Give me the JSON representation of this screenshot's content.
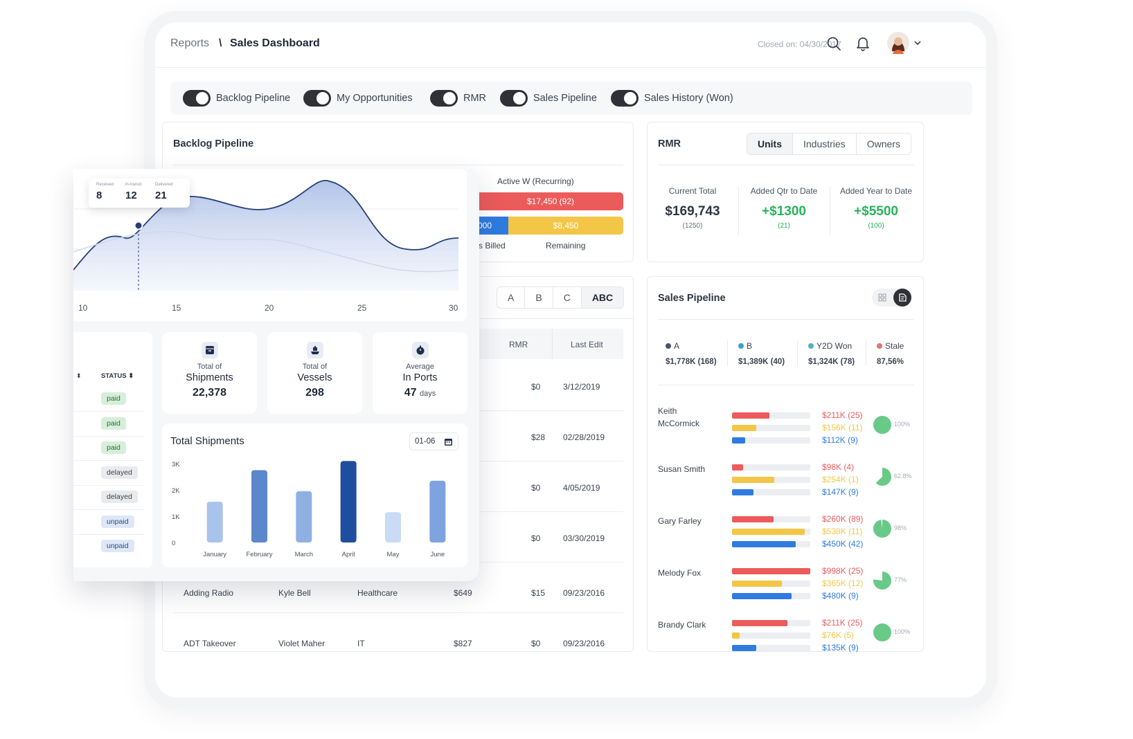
{
  "header": {
    "crumb_root": "Reports",
    "crumb_sep": "\\",
    "crumb_current": "Sales Dashboard",
    "closed_on": "Closed on: 04/30/2017"
  },
  "toggles": [
    "Backlog Pipeline",
    "My Opportunities",
    "RMR",
    "Sales Pipeline",
    "Sales History (Won)"
  ],
  "backlog": {
    "title": "Backlog Pipeline",
    "active_label": "Active W (Recurring)",
    "bar1_label": "$17,450 (92)",
    "bar2_left": "000",
    "bar2_right": "$8,450",
    "billed_label": "s Billed",
    "remaining_label": "Remaining"
  },
  "filters": [
    "A",
    "B",
    "C",
    "ABC"
  ],
  "table": {
    "headers": [
      "RMR",
      "Last Edit"
    ],
    "rows": [
      {
        "rmr": "$0",
        "edit": "3/12/2019"
      },
      {
        "rmr": "$28",
        "edit": "02/28/2019"
      },
      {
        "rmr": "$0",
        "edit": "4/05/2019"
      },
      {
        "rmr": "$0",
        "edit": "03/30/2019"
      },
      {
        "name": "Adding Radio",
        "owner": "Kyle Bell",
        "industry": "Healthcare",
        "amt": "$649",
        "rmr": "$15",
        "edit": "09/23/2016"
      },
      {
        "name": "ADT Takeover",
        "owner": "Violet Maher",
        "industry": "IT",
        "amt": "$827",
        "rmr": "$0",
        "edit": "09/23/2016"
      }
    ]
  },
  "rmr": {
    "title": "RMR",
    "tabs": [
      "Units",
      "Industries",
      "Owners"
    ],
    "cols": [
      {
        "label": "Current Total",
        "value": "$169,743",
        "sub": "(1250)"
      },
      {
        "label": "Added Qtr to Date",
        "value": "+$1300",
        "sub": "(21)"
      },
      {
        "label": "Added Year to Date",
        "value": "+$5500",
        "sub": "(100)"
      }
    ]
  },
  "sales_pipeline": {
    "title": "Sales Pipeline",
    "legend": [
      {
        "name": "A",
        "value": "$1,778K (168)",
        "color": "#4a5568"
      },
      {
        "name": "B",
        "value": "$1,389K (40)",
        "color": "#38a3c9"
      },
      {
        "name": "Y2D Won",
        "value": "$1,324K (78)",
        "color": "#4fb3bf"
      },
      {
        "name": "Stale",
        "value": "87,56%",
        "color": "#e57373"
      }
    ],
    "people": [
      {
        "name": "Keith McCormick",
        "red": 0.48,
        "yellow": 0.31,
        "blue": 0.17,
        "red_l": "$211K (25)",
        "yellow_l": "$156K (11)",
        "blue_l": "$112K (9)",
        "pct": "100%",
        "share": 1.0
      },
      {
        "name": "Susan Smith",
        "red": 0.14,
        "yellow": 0.54,
        "blue": 0.27,
        "red_l": "$98K (4)",
        "yellow_l": "$254K (1)",
        "blue_l": "$147K (9)",
        "pct": "62.8%",
        "share": 0.628
      },
      {
        "name": "Gary Farley",
        "red": 0.53,
        "yellow": 0.93,
        "blue": 0.81,
        "red_l": "$260K (89)",
        "yellow_l": "$538K (11)",
        "blue_l": "$450K (42)",
        "pct": "98%",
        "share": 0.98
      },
      {
        "name": "Melody Fox",
        "red": 1.0,
        "yellow": 0.64,
        "blue": 0.76,
        "red_l": "$998K (25)",
        "yellow_l": "$365K (12)",
        "blue_l": "$480K (9)",
        "pct": "77%",
        "share": 0.77
      },
      {
        "name": "Brandy Clark",
        "red": 0.71,
        "yellow": 0.1,
        "blue": 0.31,
        "red_l": "$211K (25)",
        "yellow_l": "$76K (5)",
        "blue_l": "$135K (9)",
        "pct": "100%",
        "share": 1.0
      }
    ]
  },
  "overlay": {
    "tooltip": [
      {
        "label": "Received",
        "value": "8"
      },
      {
        "label": "In-transit",
        "value": "12"
      },
      {
        "label": "Delivered",
        "value": "21"
      }
    ],
    "x_ticks": [
      "10",
      "15",
      "20",
      "25",
      "30"
    ],
    "status_header": "STATUS",
    "statuses": [
      "paid",
      "paid",
      "paid",
      "delayed",
      "delayed",
      "unpaid",
      "unpaid"
    ],
    "kpis": [
      {
        "l1": "Total of",
        "l2": "Shipments",
        "value": "22,378",
        "unit": ""
      },
      {
        "l1": "Total of",
        "l2": "Vessels",
        "value": "298",
        "unit": ""
      },
      {
        "l1": "Average",
        "l2": "In Ports",
        "value": "47",
        "unit": "days"
      }
    ],
    "shipments_title": "Total Shipments",
    "date_range": "01-06"
  },
  "chart_data": {
    "type": "bar",
    "title": "Total Shipments",
    "categories": [
      "January",
      "February",
      "March",
      "April",
      "May",
      "June"
    ],
    "values": [
      1550,
      2750,
      1950,
      3100,
      1150,
      2350
    ],
    "yticks": [
      "3K",
      "2K",
      "1K",
      "0"
    ],
    "ylim": [
      0,
      3000
    ],
    "colors": [
      "#a9c4ec",
      "#5b87cc",
      "#8fb0e3",
      "#1f4e9e",
      "#c9dbf5",
      "#7ea3df"
    ]
  }
}
